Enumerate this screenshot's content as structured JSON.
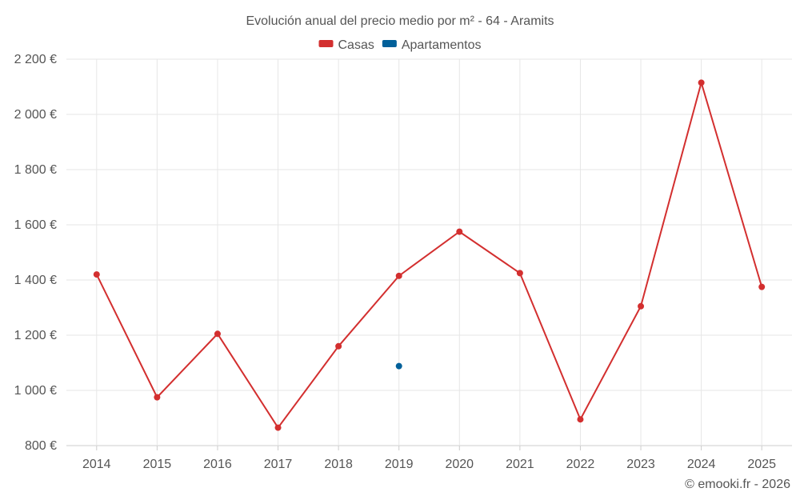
{
  "chart_data": {
    "type": "line",
    "title": "Evolución anual del precio medio por m² - 64 - Aramits",
    "categories": [
      "2014",
      "2015",
      "2016",
      "2017",
      "2018",
      "2019",
      "2020",
      "2021",
      "2022",
      "2023",
      "2024",
      "2025"
    ],
    "series": [
      {
        "name": "Casas",
        "color": "#d32f2f",
        "values": [
          1420,
          975,
          1205,
          865,
          1160,
          1415,
          1575,
          1425,
          895,
          1305,
          2115,
          1375
        ]
      },
      {
        "name": "Apartamentos",
        "color": "#01609a",
        "values": [
          null,
          null,
          null,
          null,
          null,
          1088,
          null,
          null,
          null,
          null,
          null,
          null
        ]
      }
    ],
    "ylim": [
      800,
      2200
    ],
    "yticks": [
      800,
      1000,
      1200,
      1400,
      1600,
      1800,
      2000,
      2200
    ],
    "ytick_labels": [
      "800 €",
      "1 000 €",
      "1 200 €",
      "1 400 €",
      "1 600 €",
      "1 800 €",
      "2 000 €",
      "2 200 €"
    ],
    "legend_position": "top-center",
    "grid": true
  },
  "credit": "© emooki.fr - 2026"
}
